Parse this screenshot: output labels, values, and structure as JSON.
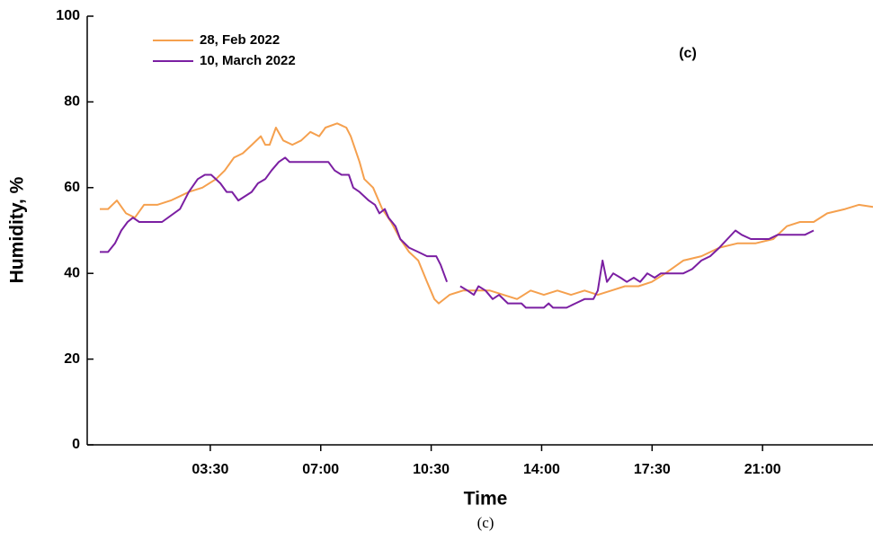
{
  "chart_data": {
    "type": "line",
    "xlabel": "Time",
    "ylabel": "Humidity, %",
    "annotation": "(c)",
    "caption": "(c)",
    "xlim": [
      -0.4,
      24.5
    ],
    "ylim": [
      0,
      100
    ],
    "xticks": [
      {
        "value": 3.5,
        "label": "03:30"
      },
      {
        "value": 7,
        "label": "07:00"
      },
      {
        "value": 10.5,
        "label": "10:30"
      },
      {
        "value": 14,
        "label": "14:00"
      },
      {
        "value": 17.5,
        "label": "17:30"
      },
      {
        "value": 21,
        "label": "21:00"
      }
    ],
    "yticks": [
      0,
      20,
      40,
      60,
      80,
      100
    ],
    "grid": false,
    "legend": "upper left",
    "series": [
      {
        "name": "28, Feb 2022",
        "color": "#f5a04e",
        "x": [
          0,
          0.26,
          0.54,
          0.83,
          1.11,
          1.4,
          1.82,
          2.25,
          2.54,
          2.82,
          3.25,
          3.68,
          3.96,
          4.25,
          4.53,
          4.82,
          5.1,
          5.24,
          5.38,
          5.58,
          5.81,
          6.1,
          6.38,
          6.67,
          6.95,
          7.15,
          7.52,
          7.81,
          7.95,
          8.23,
          8.38,
          8.66,
          8.95,
          9.23,
          9.52,
          9.8,
          10.09,
          10.37,
          10.6,
          10.74,
          11.08,
          11.51,
          11.94,
          12.36,
          12.79,
          13.22,
          13.65,
          14.07,
          14.5,
          14.93,
          15.36,
          15.78,
          16.21,
          16.64,
          17.07,
          17.49,
          17.92,
          18.49,
          19.06,
          19.63,
          20.2,
          20.77,
          21.34,
          21.77,
          22.19,
          22.62,
          23.05,
          23.62,
          24.05,
          24.5
        ],
        "values": [
          55,
          55,
          57,
          54,
          53,
          56,
          56,
          57,
          58,
          59,
          60,
          62,
          64,
          67,
          68,
          70,
          72,
          70,
          70,
          74,
          71,
          70,
          71,
          73,
          72,
          74,
          75,
          74,
          72,
          66,
          62,
          60,
          55,
          52,
          48,
          45,
          43,
          38,
          34,
          33,
          35,
          36,
          36,
          36,
          35,
          34,
          36,
          35,
          36,
          35,
          36,
          35,
          36,
          37,
          37,
          38,
          40,
          43,
          44,
          46,
          47,
          47,
          48,
          51,
          52,
          52,
          54,
          55,
          56,
          55.5
        ]
      },
      {
        "name": "10, March 2022",
        "color": "#7b1fa2",
        "x": [
          0,
          0.26,
          0.48,
          0.68,
          0.88,
          1.05,
          1.25,
          1.97,
          2.54,
          2.82,
          3.1,
          3.33,
          3.53,
          3.82,
          4.02,
          4.19,
          4.39,
          4.81,
          5.01,
          5.24,
          5.44,
          5.67,
          5.87,
          6.01,
          7.24,
          7.44,
          7.66,
          7.89,
          8.03,
          8.23,
          8.52,
          8.72,
          8.86,
          9.03,
          9.15,
          9.37,
          9.52,
          9.8,
          10.09,
          10.37,
          10.66,
          10.8,
          11.0,
          11.2,
          11.42,
          11.65,
          11.85,
          12.0,
          12.22,
          12.45,
          12.65,
          12.93,
          13.36,
          13.5,
          14.07,
          14.22,
          14.36,
          14.79,
          15.07,
          15.36,
          15.64,
          15.78,
          15.93,
          16.07,
          16.27,
          16.5,
          16.7,
          16.92,
          17.12,
          17.35,
          17.58,
          17.78,
          18.49,
          18.77,
          19.06,
          19.34,
          19.63,
          20.14,
          20.34,
          20.63,
          21.2,
          21.48,
          22.34,
          22.62
        ],
        "values": [
          45,
          45,
          47,
          50,
          52,
          53,
          52,
          52,
          55,
          59,
          62,
          63,
          63,
          61,
          59,
          59,
          57,
          59,
          61,
          62,
          64,
          66,
          67,
          66,
          66,
          64,
          63,
          63,
          60,
          59,
          57,
          56,
          54,
          55,
          53,
          51,
          48,
          46,
          45,
          44,
          44,
          42,
          38,
          null,
          37,
          36,
          35,
          37,
          36,
          34,
          35,
          33,
          33,
          32,
          32,
          33,
          32,
          32,
          33,
          34,
          34,
          36,
          43,
          38,
          40,
          39,
          38,
          39,
          38,
          40,
          39,
          40,
          40,
          41,
          43,
          44,
          46,
          50,
          49,
          48,
          48,
          49,
          49,
          50
        ]
      }
    ]
  }
}
